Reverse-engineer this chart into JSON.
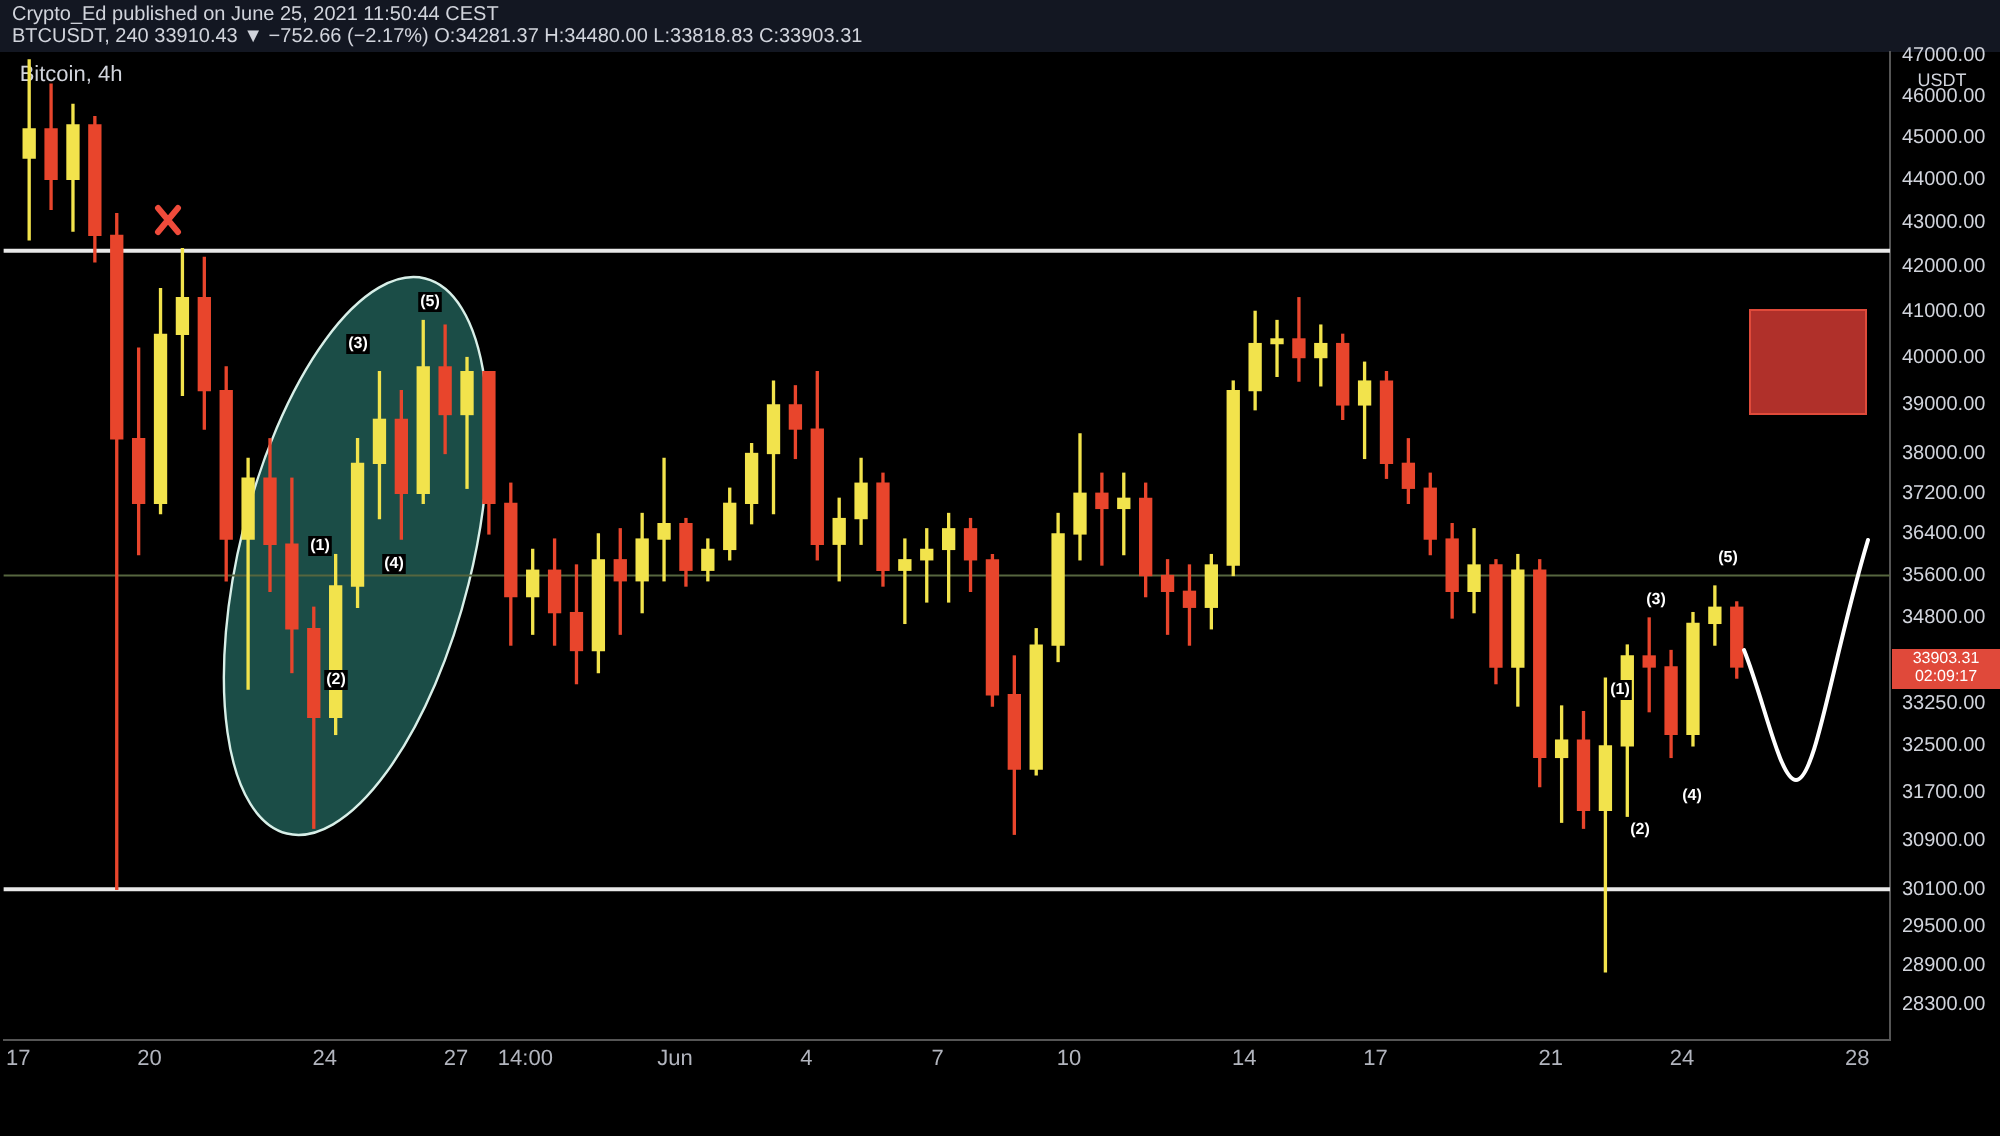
{
  "chart_data": {
    "type": "candlestick",
    "title": "Bitcoin, 4h",
    "ylabel": "USDT",
    "annotations": [
      "Crypto_Ed published on June 25, 2021 11:50:44 CEST",
      "BTCUSDT, 240 33910.43 ▼ −752.66 (−2.17%) O:34281.37 H:34480.00 L:33818.83 C:33903.31",
      "33903.31",
      "02:09:17",
      "(1)",
      "(2)",
      "(3)",
      "(4)",
      "(5)",
      "(1)",
      "(2)",
      "(3)",
      "(4)",
      "(5)"
    ],
    "x": [
      "2021-05-17T06:00",
      "2021-05-17T18:00",
      "2021-05-18T06:00",
      "2021-05-18T18:00",
      "2021-05-19T06:00",
      "2021-05-19T18:00",
      "2021-05-20T06:00",
      "2021-05-20T18:00",
      "2021-05-21T06:00",
      "2021-05-21T18:00",
      "2021-05-22T06:00",
      "2021-05-22T18:00",
      "2021-05-23T06:00",
      "2021-05-23T18:00",
      "2021-05-24T06:00",
      "2021-05-24T18:00",
      "2021-05-25T06:00",
      "2021-05-25T18:00",
      "2021-05-26T06:00",
      "2021-05-26T18:00",
      "2021-05-27T06:00",
      "2021-05-27T18:00",
      "2021-05-28T06:00",
      "2021-05-28T18:00",
      "2021-05-29T06:00",
      "2021-05-29T18:00",
      "2021-05-30T06:00",
      "2021-05-30T18:00",
      "2021-05-31T06:00",
      "2021-05-31T18:00",
      "2021-06-01T06:00",
      "2021-06-01T18:00",
      "2021-06-02T06:00",
      "2021-06-02T18:00",
      "2021-06-03T06:00",
      "2021-06-03T18:00",
      "2021-06-04T06:00",
      "2021-06-04T18:00",
      "2021-06-05T06:00",
      "2021-06-05T18:00",
      "2021-06-06T06:00",
      "2021-06-06T18:00",
      "2021-06-07T06:00",
      "2021-06-07T18:00",
      "2021-06-08T06:00",
      "2021-06-08T18:00",
      "2021-06-09T06:00",
      "2021-06-09T18:00",
      "2021-06-10T06:00",
      "2021-06-10T18:00",
      "2021-06-11T06:00",
      "2021-06-11T18:00",
      "2021-06-12T06:00",
      "2021-06-12T18:00",
      "2021-06-13T06:00",
      "2021-06-13T18:00",
      "2021-06-14T06:00",
      "2021-06-14T18:00",
      "2021-06-15T06:00",
      "2021-06-15T18:00",
      "2021-06-16T06:00",
      "2021-06-16T18:00",
      "2021-06-17T06:00",
      "2021-06-17T18:00",
      "2021-06-18T06:00",
      "2021-06-18T18:00",
      "2021-06-19T06:00",
      "2021-06-19T18:00",
      "2021-06-20T06:00",
      "2021-06-20T18:00",
      "2021-06-21T06:00",
      "2021-06-21T18:00",
      "2021-06-22T06:00",
      "2021-06-22T18:00",
      "2021-06-23T06:00",
      "2021-06-23T18:00",
      "2021-06-24T06:00",
      "2021-06-24T18:00",
      "2021-06-25T06:00"
    ],
    "ohlc": [
      [
        44500,
        46900,
        42600,
        45200
      ],
      [
        45200,
        46300,
        43300,
        44000
      ],
      [
        44000,
        45800,
        42800,
        45300
      ],
      [
        45300,
        45500,
        42100,
        42700
      ],
      [
        42700,
        43200,
        30100,
        38300
      ],
      [
        38300,
        40200,
        36000,
        37000
      ],
      [
        37000,
        41500,
        36800,
        40500
      ],
      [
        40500,
        42400,
        39200,
        41300
      ],
      [
        41300,
        42200,
        38500,
        39300
      ],
      [
        39300,
        39800,
        35500,
        36300
      ],
      [
        36300,
        37900,
        33500,
        37500
      ],
      [
        37500,
        38300,
        35300,
        36200
      ],
      [
        36200,
        37500,
        33800,
        34600
      ],
      [
        34600,
        35000,
        31100,
        33000
      ],
      [
        33000,
        36000,
        32700,
        35400
      ],
      [
        35400,
        38300,
        35000,
        37800
      ],
      [
        37800,
        39700,
        36700,
        38700
      ],
      [
        38700,
        39300,
        36300,
        37200
      ],
      [
        37200,
        40800,
        37000,
        39800
      ],
      [
        39800,
        40700,
        38000,
        38800
      ],
      [
        38800,
        40000,
        37300,
        39700
      ],
      [
        39700,
        39700,
        36400,
        37000
      ],
      [
        37000,
        37400,
        34300,
        35200
      ],
      [
        35200,
        36100,
        34500,
        35700
      ],
      [
        35700,
        36300,
        34300,
        34900
      ],
      [
        34900,
        35800,
        33600,
        34200
      ],
      [
        34200,
        36400,
        33800,
        35900
      ],
      [
        35900,
        36500,
        34500,
        35500
      ],
      [
        35500,
        36800,
        34900,
        36300
      ],
      [
        36300,
        37900,
        35500,
        36600
      ],
      [
        36600,
        36700,
        35400,
        35700
      ],
      [
        35700,
        36300,
        35500,
        36100
      ],
      [
        36100,
        37300,
        35900,
        37000
      ],
      [
        37000,
        38200,
        36600,
        38000
      ],
      [
        38000,
        39500,
        36800,
        39000
      ],
      [
        39000,
        39400,
        37900,
        38500
      ],
      [
        38500,
        39700,
        35900,
        36200
      ],
      [
        36200,
        37100,
        35500,
        36700
      ],
      [
        36700,
        37900,
        36200,
        37400
      ],
      [
        37400,
        37600,
        35400,
        35700
      ],
      [
        35700,
        36300,
        34700,
        35900
      ],
      [
        35900,
        36500,
        35100,
        36100
      ],
      [
        36100,
        36800,
        35100,
        36500
      ],
      [
        36500,
        36700,
        35300,
        35900
      ],
      [
        35900,
        36000,
        33200,
        33400
      ],
      [
        33400,
        34100,
        31000,
        32100
      ],
      [
        32100,
        34600,
        32000,
        34300
      ],
      [
        34300,
        36800,
        34000,
        36400
      ],
      [
        36400,
        38400,
        35900,
        37200
      ],
      [
        37200,
        37600,
        35800,
        36900
      ],
      [
        36900,
        37600,
        36000,
        37100
      ],
      [
        37100,
        37400,
        35200,
        35600
      ],
      [
        35600,
        35900,
        34500,
        35300
      ],
      [
        35300,
        35800,
        34300,
        35000
      ],
      [
        35000,
        36000,
        34600,
        35800
      ],
      [
        35800,
        39500,
        35600,
        39300
      ],
      [
        39300,
        41000,
        38900,
        40300
      ],
      [
        40300,
        40800,
        39600,
        40400
      ],
      [
        40400,
        41300,
        39500,
        40000
      ],
      [
        40000,
        40700,
        39400,
        40300
      ],
      [
        40300,
        40500,
        38700,
        39000
      ],
      [
        39000,
        39900,
        37900,
        39500
      ],
      [
        39500,
        39700,
        37500,
        37800
      ],
      [
        37800,
        38300,
        37000,
        37300
      ],
      [
        37300,
        37600,
        36000,
        36300
      ],
      [
        36300,
        36600,
        34800,
        35300
      ],
      [
        35300,
        36500,
        34900,
        35800
      ],
      [
        35800,
        35900,
        33600,
        33900
      ],
      [
        33900,
        36000,
        33200,
        35700
      ],
      [
        35700,
        35900,
        31800,
        32300
      ],
      [
        32300,
        33200,
        31200,
        32600
      ],
      [
        32600,
        33100,
        31100,
        31400
      ],
      [
        31400,
        33700,
        28800,
        32500
      ],
      [
        32500,
        34300,
        31300,
        34100
      ],
      [
        34100,
        34800,
        33100,
        33900
      ],
      [
        33900,
        34200,
        32300,
        32700
      ],
      [
        32700,
        34900,
        32500,
        34700
      ],
      [
        34700,
        35400,
        34300,
        35000
      ],
      [
        35000,
        35100,
        33700,
        33900
      ]
    ],
    "colors": [
      "#f2e34c",
      "#e8452c",
      "#f2e34c",
      "#e8452c",
      "#e8452c",
      "#e8452c",
      "#f2e34c",
      "#f2e34c",
      "#e8452c",
      "#e8452c",
      "#f2e34c",
      "#e8452c",
      "#e8452c",
      "#e8452c",
      "#f2e34c",
      "#f2e34c",
      "#f2e34c",
      "#e8452c",
      "#f2e34c",
      "#e8452c",
      "#f2e34c",
      "#e8452c",
      "#e8452c",
      "#f2e34c",
      "#e8452c",
      "#e8452c",
      "#f2e34c",
      "#e8452c",
      "#f2e34c",
      "#f2e34c",
      "#e8452c",
      "#f2e34c",
      "#f2e34c",
      "#f2e34c",
      "#f2e34c",
      "#e8452c",
      "#e8452c",
      "#f2e34c",
      "#f2e34c",
      "#e8452c",
      "#f2e34c",
      "#f2e34c",
      "#f2e34c",
      "#e8452c",
      "#e8452c",
      "#e8452c",
      "#f2e34c",
      "#f2e34c",
      "#f2e34c",
      "#e8452c",
      "#f2e34c",
      "#e8452c",
      "#e8452c",
      "#e8452c",
      "#f2e34c",
      "#f2e34c",
      "#f2e34c",
      "#f2e34c",
      "#e8452c",
      "#f2e34c",
      "#e8452c",
      "#f2e34c",
      "#e8452c",
      "#e8452c",
      "#e8452c",
      "#e8452c",
      "#f2e34c",
      "#e8452c",
      "#f2e34c",
      "#e8452c",
      "#f2e34c",
      "#e8452c",
      "#f2e34c",
      "#f2e34c",
      "#e8452c",
      "#e8452c",
      "#f2e34c",
      "#f2e34c",
      "#e8452c"
    ],
    "xlim": [
      "2021-05-16T16:00",
      "2021-06-28T18:00"
    ],
    "xticks": [
      {
        "value": "2021-05-17",
        "label": "17"
      },
      {
        "value": "2021-05-20",
        "label": "20"
      },
      {
        "value": "2021-05-24",
        "label": "24"
      },
      {
        "value": "2021-05-27",
        "label": "27"
      },
      {
        "value": "2021-05-28T14:00",
        "label": "14:00"
      },
      {
        "value": "2021-06-01",
        "label": "Jun"
      },
      {
        "value": "2021-06-04",
        "label": "4"
      },
      {
        "value": "2021-06-07",
        "label": "7"
      },
      {
        "value": "2021-06-10",
        "label": "10"
      },
      {
        "value": "2021-06-14",
        "label": "14"
      },
      {
        "value": "2021-06-17",
        "label": "17"
      },
      {
        "value": "2021-06-21",
        "label": "21"
      },
      {
        "value": "2021-06-24",
        "label": "24"
      },
      {
        "value": "2021-06-28",
        "label": "28"
      }
    ],
    "ylim": [
      27770,
      47100
    ],
    "yticks": [
      {
        "value": 28300,
        "label": "28300.00"
      },
      {
        "value": 28900,
        "label": "28900.00"
      },
      {
        "value": 29500,
        "label": "29500.00"
      },
      {
        "value": 30100,
        "label": "30100.00"
      },
      {
        "value": 30900,
        "label": "30900.00"
      },
      {
        "value": 31700,
        "label": "31700.00"
      },
      {
        "value": 32500,
        "label": "32500.00"
      },
      {
        "value": 33250,
        "label": "33250.00"
      },
      {
        "value": 34800,
        "label": "34800.00"
      },
      {
        "value": 35600,
        "label": "35600.00"
      },
      {
        "value": 36400,
        "label": "36400.00"
      },
      {
        "value": 37200,
        "label": "37200.00"
      },
      {
        "value": 38000,
        "label": "38000.00"
      },
      {
        "value": 39000,
        "label": "39000.00"
      },
      {
        "value": 40000,
        "label": "40000.00"
      },
      {
        "value": 41000,
        "label": "41000.00"
      },
      {
        "value": 42000,
        "label": "42000.00"
      },
      {
        "value": 43000,
        "label": "43000.00"
      },
      {
        "value": 44000,
        "label": "44000.00"
      },
      {
        "value": 45000,
        "label": "45000.00"
      },
      {
        "value": 46000,
        "label": "46000.00"
      },
      {
        "value": 47000,
        "label": "47000.00"
      }
    ],
    "log": "y",
    "ref_lines": [
      {
        "axis": "y",
        "value": 42350,
        "color": "#e8e8e8"
      },
      {
        "axis": "y",
        "value": 30100,
        "color": "#e8e8e8"
      },
      {
        "axis": "y",
        "value": 35600,
        "color": "#56663f"
      }
    ]
  }
}
